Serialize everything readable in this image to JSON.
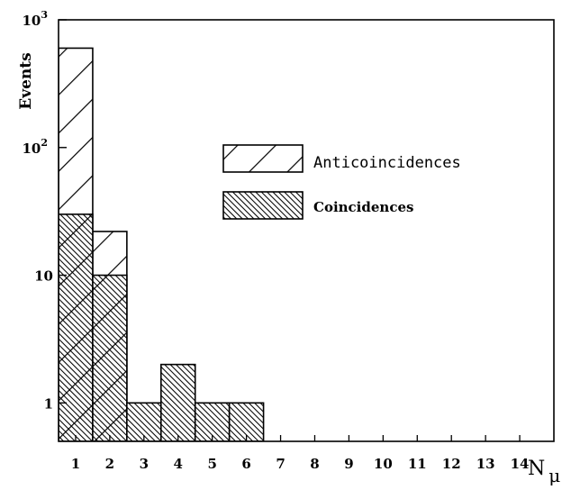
{
  "chart_data": {
    "type": "bar",
    "x": [
      1,
      2,
      3,
      4,
      5,
      6
    ],
    "xlim": [
      0.5,
      15
    ],
    "ylim": [
      0.5,
      1000
    ],
    "yscale": "log",
    "xlabel": "N",
    "xlabel_sub": "μ",
    "ylabel": "Events",
    "xticks": [
      "1",
      "2",
      "3",
      "4",
      "5",
      "6",
      "7",
      "8",
      "9",
      "10",
      "11",
      "12",
      "13",
      "14"
    ],
    "yticks": [
      {
        "value": 1,
        "label": "1",
        "sup": ""
      },
      {
        "value": 10,
        "label": "10",
        "sup": ""
      },
      {
        "value": 100,
        "label": "10",
        "sup": "2"
      },
      {
        "value": 1000,
        "label": "10",
        "sup": "3"
      }
    ],
    "series": [
      {
        "name": "Anticoincidences",
        "values": [
          600,
          22,
          0,
          0,
          0,
          0
        ],
        "pattern": "wide-hatch"
      },
      {
        "name": "Coincidences",
        "values": [
          30,
          10,
          1,
          2,
          1,
          1
        ],
        "pattern": "dense-hatch"
      }
    ],
    "legend": "right-center",
    "grid": false
  }
}
